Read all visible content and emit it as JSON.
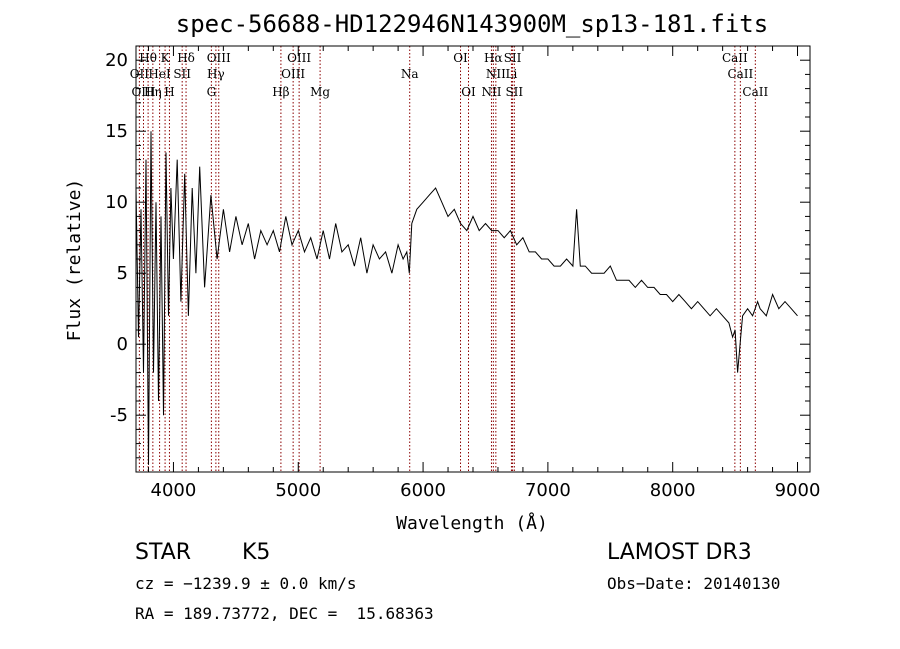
{
  "chart_data": {
    "type": "line",
    "title": "spec-56688-HD122946N143900M_sp13-181.fits",
    "xlabel": "Wavelength (Å)",
    "ylabel": "Flux (relative)",
    "xlim": [
      3700,
      9100
    ],
    "ylim": [
      -9,
      21
    ],
    "xticks": [
      4000,
      5000,
      6000,
      7000,
      8000,
      9000
    ],
    "xtick_labels": [
      "4000",
      "5000",
      "6000",
      "7000",
      "8000",
      "9000"
    ],
    "yticks": [
      -5,
      0,
      5,
      10,
      15,
      20
    ],
    "ytick_labels": [
      "-5",
      "0",
      "5",
      "10",
      "15",
      "20"
    ],
    "series": [
      {
        "name": "flux",
        "x": [
          3700,
          3720,
          3740,
          3760,
          3780,
          3800,
          3820,
          3840,
          3860,
          3880,
          3900,
          3920,
          3940,
          3960,
          3980,
          4000,
          4030,
          4060,
          4090,
          4120,
          4150,
          4180,
          4210,
          4250,
          4300,
          4350,
          4400,
          4450,
          4500,
          4550,
          4600,
          4650,
          4700,
          4750,
          4800,
          4850,
          4900,
          4950,
          5000,
          5050,
          5100,
          5150,
          5200,
          5250,
          5300,
          5350,
          5400,
          5450,
          5500,
          5550,
          5600,
          5650,
          5700,
          5750,
          5800,
          5840,
          5870,
          5890,
          5910,
          5950,
          6000,
          6050,
          6100,
          6150,
          6200,
          6250,
          6300,
          6350,
          6400,
          6450,
          6500,
          6550,
          6600,
          6650,
          6700,
          6750,
          6800,
          6850,
          6900,
          6950,
          7000,
          7050,
          7100,
          7150,
          7200,
          7230,
          7260,
          7300,
          7350,
          7400,
          7450,
          7500,
          7550,
          7600,
          7650,
          7700,
          7750,
          7800,
          7850,
          7900,
          7950,
          8000,
          8050,
          8100,
          8150,
          8200,
          8250,
          8300,
          8350,
          8400,
          8450,
          8480,
          8500,
          8520,
          8545,
          8560,
          8600,
          8640,
          8680,
          8700,
          8750,
          8800,
          8850,
          8900,
          8950,
          9000
        ],
        "values": [
          11.0,
          0.5,
          9.5,
          -2.0,
          13.0,
          -8.5,
          15.0,
          -2.0,
          10.0,
          -4.0,
          9.0,
          -5.0,
          13.5,
          2.0,
          11.0,
          6.0,
          13.0,
          3.0,
          12.0,
          2.0,
          11.0,
          5.0,
          12.5,
          4.0,
          10.5,
          6.0,
          9.5,
          6.5,
          9.0,
          7.0,
          8.5,
          6.0,
          8.0,
          7.0,
          8.0,
          6.5,
          9.0,
          7.0,
          8.0,
          6.5,
          7.5,
          6.0,
          8.0,
          6.0,
          8.5,
          6.5,
          7.0,
          5.5,
          7.5,
          5.0,
          7.0,
          6.0,
          6.5,
          5.0,
          7.0,
          6.0,
          6.5,
          5.0,
          8.5,
          9.5,
          10.0,
          10.5,
          11.0,
          10.0,
          9.0,
          9.5,
          8.5,
          8.0,
          9.0,
          8.0,
          8.5,
          8.0,
          8.0,
          7.5,
          8.0,
          7.0,
          7.5,
          6.5,
          6.5,
          6.0,
          6.0,
          5.5,
          5.5,
          6.0,
          5.5,
          9.5,
          5.5,
          5.5,
          5.0,
          5.0,
          5.0,
          5.5,
          4.5,
          4.5,
          4.5,
          4.0,
          4.5,
          4.0,
          4.0,
          3.5,
          3.5,
          3.0,
          3.5,
          3.0,
          2.5,
          3.0,
          2.5,
          2.0,
          2.5,
          2.0,
          1.5,
          0.5,
          1.0,
          -2.0,
          0.5,
          2.0,
          2.5,
          2.0,
          3.0,
          2.5,
          2.0,
          3.5,
          2.5,
          3.0,
          2.5,
          2.0
        ]
      }
    ],
    "spectral_lines": [
      {
        "label": "Hθ",
        "x": 3797,
        "row": 1
      },
      {
        "label": "K",
        "x": 3933,
        "row": 1
      },
      {
        "label": "Hδ",
        "x": 4101,
        "row": 1
      },
      {
        "label": "OIII",
        "x": 4363,
        "row": 1
      },
      {
        "label": "OIII",
        "x": 5007,
        "row": 1
      },
      {
        "label": "OI",
        "x": 6300,
        "row": 1
      },
      {
        "label": "Hα",
        "x": 6563,
        "row": 1
      },
      {
        "label": "SII",
        "x": 6717,
        "row": 1
      },
      {
        "label": "CaII",
        "x": 8498,
        "row": 1
      },
      {
        "label": "OII",
        "x": 3727,
        "row": 2
      },
      {
        "label": "HeI",
        "x": 3889,
        "row": 2
      },
      {
        "label": "SII",
        "x": 4070,
        "row": 2
      },
      {
        "label": "Hγ",
        "x": 4340,
        "row": 2
      },
      {
        "label": "OIII",
        "x": 4959,
        "row": 2
      },
      {
        "label": "Na",
        "x": 5893,
        "row": 2
      },
      {
        "label": "NII",
        "x": 6583,
        "row": 2
      },
      {
        "label": "Li",
        "x": 6708,
        "row": 2
      },
      {
        "label": "CaII",
        "x": 8542,
        "row": 2
      },
      {
        "label": "OIII",
        "x": 3760,
        "row": 3
      },
      {
        "label": "Hη",
        "x": 3835,
        "row": 3
      },
      {
        "label": "H",
        "x": 3968,
        "row": 3
      },
      {
        "label": "G",
        "x": 4304,
        "row": 3
      },
      {
        "label": "Hβ",
        "x": 4861,
        "row": 3
      },
      {
        "label": "Mg",
        "x": 5175,
        "row": 3
      },
      {
        "label": "OI",
        "x": 6364,
        "row": 3
      },
      {
        "label": "NII",
        "x": 6548,
        "row": 3
      },
      {
        "label": "SII",
        "x": 6731,
        "row": 3
      },
      {
        "label": "CaII",
        "x": 8662,
        "row": 3
      }
    ],
    "line_color": "#8b0000"
  },
  "info": {
    "class": "STAR",
    "subclass": "K5",
    "survey": "LAMOST DR3",
    "cz": "cz = −1239.9 ± 0.0 km/s",
    "obs_date": "Obs−Date: 20140130",
    "coords": "RA = 189.73772, DEC =  15.68363"
  }
}
